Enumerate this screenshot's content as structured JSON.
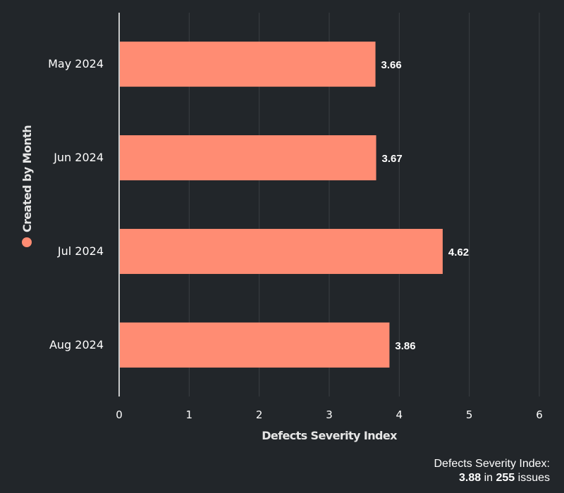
{
  "chart_data": {
    "type": "bar",
    "orientation": "horizontal",
    "categories": [
      "May 2024",
      "Jun 2024",
      "Jul 2024",
      "Aug 2024"
    ],
    "values": [
      3.66,
      3.67,
      4.62,
      3.86
    ],
    "data_labels": [
      "3.66",
      "3.67",
      "4.62",
      "3.86"
    ],
    "xlabel": "Defects Severity Index",
    "ylabel": "Created by Month",
    "xlim": [
      0,
      6
    ],
    "xticks": [
      "0",
      "1",
      "2",
      "3",
      "4",
      "5",
      "6"
    ],
    "grid": true,
    "legend": "left",
    "bar_color": "#ff8c73",
    "background": "#22262a"
  },
  "summary": {
    "line1": "Defects Severity Index:",
    "value": "3.88",
    "middle": " in ",
    "count": "255",
    "suffix": " issues"
  }
}
